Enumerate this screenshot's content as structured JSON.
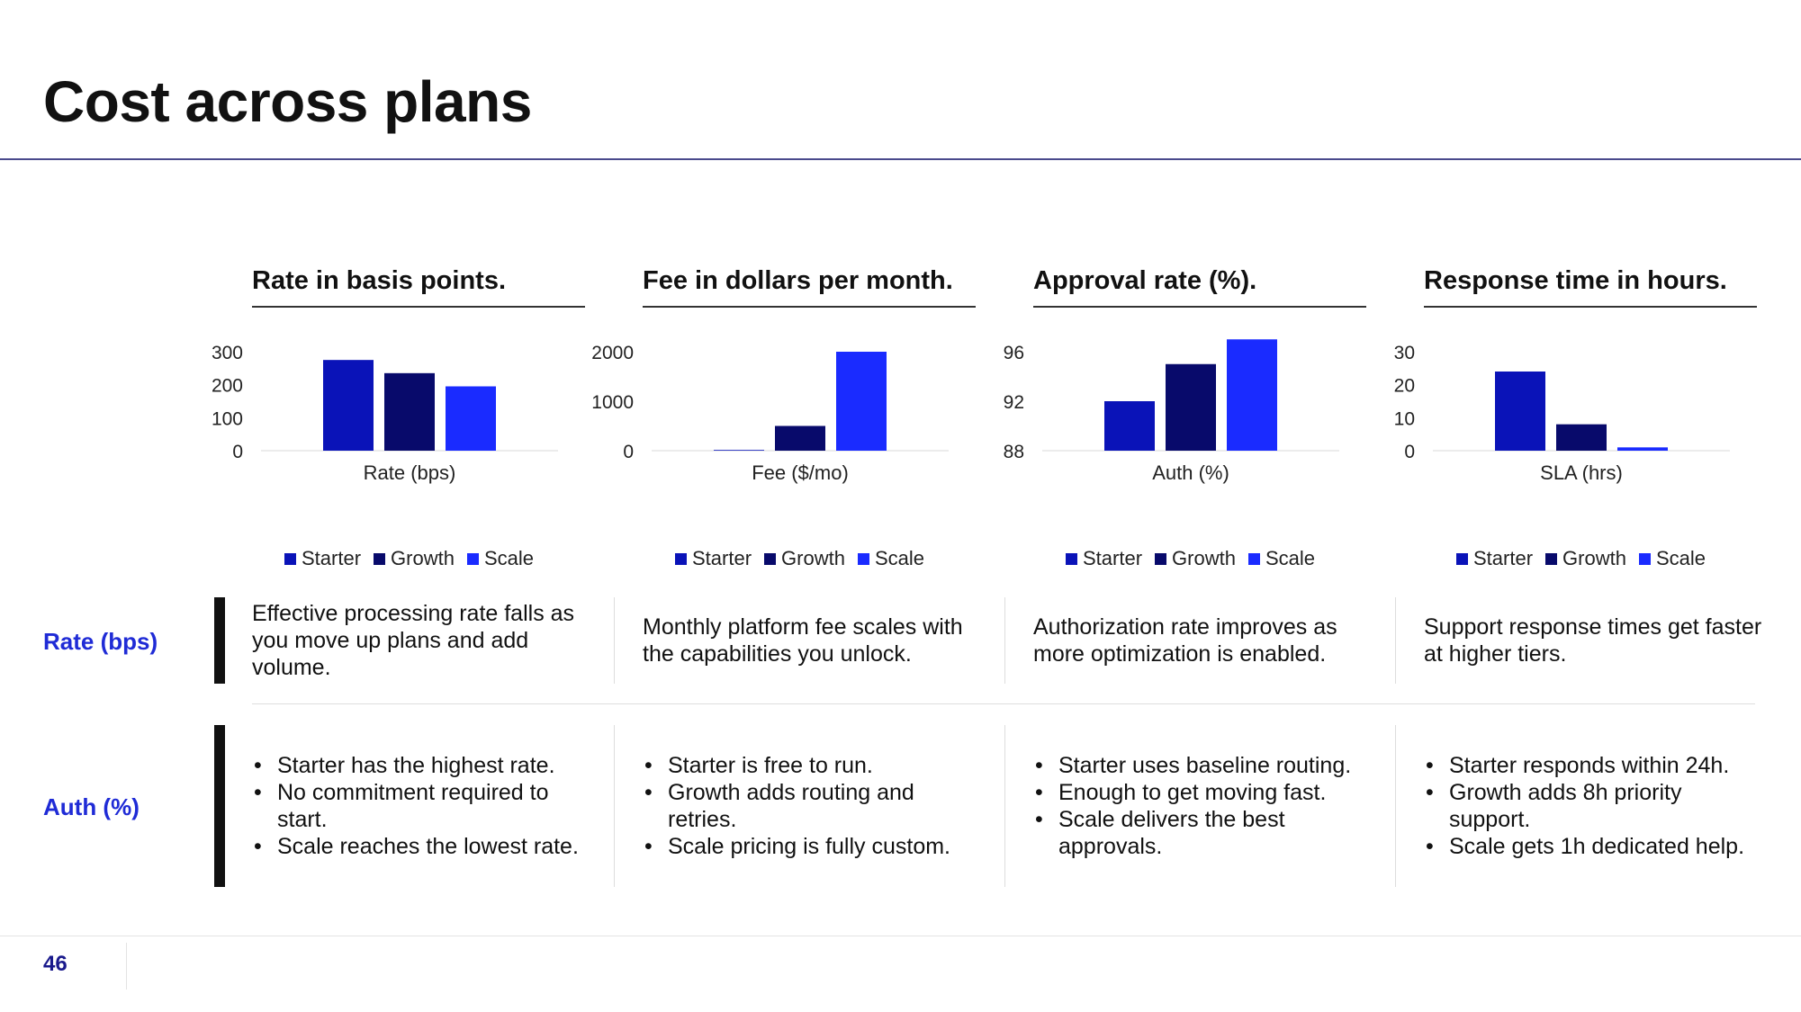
{
  "slide": {
    "title": "Cost across plans",
    "page_number": "46"
  },
  "colors": {
    "starter": "#0a13b8",
    "growth": "#080a6b",
    "scale": "#1a2bff",
    "accent_label": "#1f2bd6"
  },
  "legend": [
    "Starter",
    "Growth",
    "Scale"
  ],
  "panels": [
    {
      "heading": "Rate in basis points."
    },
    {
      "heading": "Fee in dollars per month."
    },
    {
      "heading": "Approval rate (%)."
    },
    {
      "heading": "Response time in hours."
    }
  ],
  "chart_data": [
    {
      "type": "bar",
      "title": "Rate in basis points.",
      "xlabel": "Rate (bps)",
      "categories": [
        "Rate (bps)"
      ],
      "series": [
        {
          "name": "Starter",
          "values": [
            275
          ]
        },
        {
          "name": "Growth",
          "values": [
            235
          ]
        },
        {
          "name": "Scale",
          "values": [
            195
          ]
        }
      ],
      "ylim": [
        0,
        300
      ],
      "yticks": [
        "0",
        "100",
        "200",
        "300"
      ],
      "grid": false,
      "legend": "bottom"
    },
    {
      "type": "bar",
      "title": "Fee in dollars per month.",
      "xlabel": "Fee ($/mo)",
      "categories": [
        "Fee ($/mo)"
      ],
      "series": [
        {
          "name": "Starter",
          "values": [
            0
          ]
        },
        {
          "name": "Growth",
          "values": [
            500
          ]
        },
        {
          "name": "Scale",
          "values": [
            2000
          ]
        }
      ],
      "ylim": [
        0,
        2000
      ],
      "yticks": [
        "0",
        "1000",
        "2000"
      ],
      "grid": false,
      "legend": "bottom"
    },
    {
      "type": "bar",
      "title": "Approval rate (%).",
      "xlabel": "Auth (%)",
      "categories": [
        "Auth (%)"
      ],
      "series": [
        {
          "name": "Starter",
          "values": [
            92
          ]
        },
        {
          "name": "Growth",
          "values": [
            95
          ]
        },
        {
          "name": "Scale",
          "values": [
            97
          ]
        }
      ],
      "ylim": [
        88,
        96
      ],
      "yticks": [
        "88",
        "92",
        "96"
      ],
      "grid": false,
      "legend": "bottom"
    },
    {
      "type": "bar",
      "title": "Response time in hours.",
      "xlabel": "SLA (hrs)",
      "categories": [
        "SLA (hrs)"
      ],
      "series": [
        {
          "name": "Starter",
          "values": [
            24
          ]
        },
        {
          "name": "Growth",
          "values": [
            8
          ]
        },
        {
          "name": "Scale",
          "values": [
            1
          ]
        }
      ],
      "ylim": [
        0,
        30
      ],
      "yticks": [
        "0",
        "10",
        "20",
        "30"
      ],
      "grid": false,
      "legend": "bottom"
    }
  ],
  "rows": [
    {
      "label": "Rate (bps)",
      "cells": [
        "Effective processing rate falls as you move up plans and add volume.",
        "Monthly platform fee scales with the capabilities you unlock.",
        "Authorization rate improves as more optimization is enabled.",
        "Support response times get faster at higher tiers."
      ]
    },
    {
      "label": "Auth (%)",
      "cells": [
        [
          "Starter has the highest rate.",
          "No commitment required to start.",
          "Scale reaches the lowest rate."
        ],
        [
          "Starter is free to run.",
          "Growth adds routing and retries.",
          "Scale pricing is fully custom."
        ],
        [
          "Starter uses baseline routing.",
          "Enough to get moving fast.",
          "Scale delivers the best approvals."
        ],
        [
          "Starter responds within 24h.",
          "Growth adds 8h priority support.",
          "Scale gets 1h dedicated help."
        ]
      ]
    }
  ]
}
